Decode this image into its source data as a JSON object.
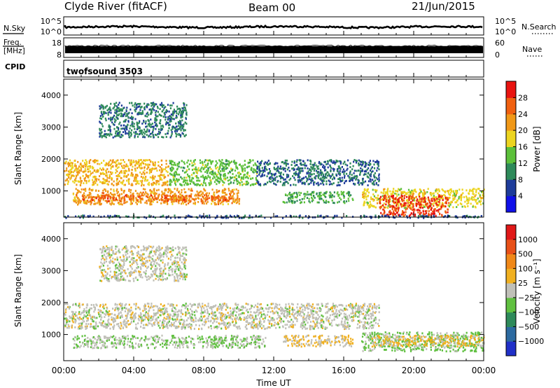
{
  "header": {
    "station": "Clyde River (fitACF)",
    "beam": "Beam 00",
    "date": "21/Jun/2015"
  },
  "noise_panel": {
    "left_label": "N.Sky",
    "left_ticks": [
      "10^5",
      "10^0"
    ],
    "right_label": "N.Search",
    "right_ticks": [
      "10^5",
      "10^0"
    ]
  },
  "freq_panel": {
    "left_label_line1": "Freq.",
    "left_label_line2": "[MHz]",
    "left_ticks": [
      "18",
      "8"
    ],
    "right_label": "Nave",
    "right_ticks": [
      "60",
      "0"
    ]
  },
  "cpid_panel": {
    "label": "CPID",
    "program": "twofsound 3503"
  },
  "x_axis": {
    "label": "Time UT",
    "ticks": [
      "00:00",
      "04:00",
      "08:00",
      "12:00",
      "16:00",
      "20:00",
      "00:00"
    ]
  },
  "colors": {
    "power_scale": [
      "#1010e8",
      "#1e3c9a",
      "#2e8a5a",
      "#5cc03a",
      "#ecd420",
      "#f09818",
      "#f06010",
      "#e81410"
    ],
    "velocity_scale": [
      "#2030c8",
      "#2c6aa0",
      "#2e8a5a",
      "#60c040",
      "#c0c0b8",
      "#f0b020",
      "#f08818",
      "#e85018",
      "#e01818"
    ]
  },
  "chart_data": [
    {
      "type": "heatmap",
      "name": "power",
      "x": [
        "00:00",
        "04:00",
        "08:00",
        "12:00",
        "16:00",
        "20:00",
        "00:00"
      ],
      "ylabel": "Slant Range [km]",
      "yticks": [
        "4000",
        "3000",
        "2000",
        "1000"
      ],
      "ylim": [
        180,
        4500
      ],
      "colorbar_label": "Power [dB]",
      "colorbar_ticks": [
        "28",
        "24",
        "20",
        "16",
        "12",
        "8",
        "4"
      ],
      "colorbar_range": [
        0,
        32
      ],
      "regions": [
        {
          "t_start": 0.0,
          "t_end": 6.0,
          "r_min": 1200,
          "r_max": 2000,
          "value": 20
        },
        {
          "t_start": 6.0,
          "t_end": 11.0,
          "r_min": 1200,
          "r_max": 2000,
          "value": 14
        },
        {
          "t_start": 0.5,
          "t_end": 10.0,
          "r_min": 600,
          "r_max": 1100,
          "value": 22
        },
        {
          "t_start": 1.0,
          "t_end": 9.5,
          "r_min": 700,
          "r_max": 900,
          "value": 26
        },
        {
          "t_start": 11.0,
          "t_end": 18.0,
          "r_min": 1200,
          "r_max": 2000,
          "value": 8
        },
        {
          "t_start": 12.5,
          "t_end": 16.5,
          "r_min": 650,
          "r_max": 1000,
          "value": 12
        },
        {
          "t_start": 2.0,
          "t_end": 7.0,
          "r_min": 2700,
          "r_max": 3800,
          "value": 9
        },
        {
          "t_start": 17.0,
          "t_end": 24.0,
          "r_min": 500,
          "r_max": 1100,
          "value": 18
        },
        {
          "t_start": 18.0,
          "t_end": 22.0,
          "r_min": 250,
          "r_max": 900,
          "value": 28
        },
        {
          "t_start": 0.0,
          "t_end": 24.0,
          "r_min": 180,
          "r_max": 260,
          "value": 7
        }
      ]
    },
    {
      "type": "heatmap",
      "name": "velocity",
      "x": [
        "00:00",
        "04:00",
        "08:00",
        "12:00",
        "16:00",
        "20:00",
        "00:00"
      ],
      "ylabel": "Slant Range [km]",
      "yticks": [
        "4000",
        "3000",
        "2000",
        "1000"
      ],
      "ylim": [
        180,
        4500
      ],
      "colorbar_label": "Velocity [m s⁻¹]",
      "colorbar_ticks": [
        "1000",
        "500",
        "100",
        "25",
        "−25",
        "−100",
        "−500",
        "−1000"
      ],
      "colorbar_range": [
        -1200,
        1200
      ],
      "regions": [
        {
          "t_start": 0.0,
          "t_end": 11.0,
          "r_min": 1200,
          "r_max": 2000,
          "value": 0
        },
        {
          "t_start": 11.0,
          "t_end": 18.0,
          "r_min": 1200,
          "r_max": 2000,
          "value": 0
        },
        {
          "t_start": 0.5,
          "t_end": 11.5,
          "r_min": 600,
          "r_max": 1000,
          "value": -120
        },
        {
          "t_start": 2.0,
          "t_end": 7.0,
          "r_min": 2700,
          "r_max": 3800,
          "value": 0
        },
        {
          "t_start": 12.5,
          "t_end": 16.5,
          "r_min": 650,
          "r_max": 1000,
          "value": 150
        },
        {
          "t_start": 17.0,
          "t_end": 24.0,
          "r_min": 500,
          "r_max": 1100,
          "value": -200
        },
        {
          "t_start": 17.5,
          "t_end": 24.0,
          "r_min": 650,
          "r_max": 1000,
          "value": 200
        }
      ]
    }
  ]
}
